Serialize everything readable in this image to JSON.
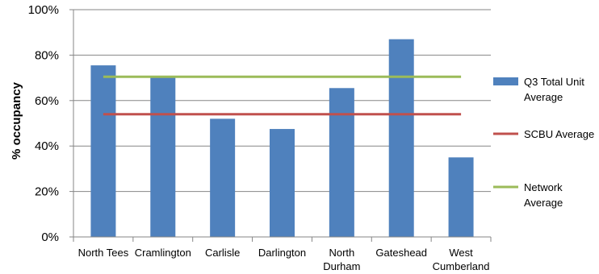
{
  "chart_data": {
    "type": "bar",
    "title": "",
    "xlabel": "",
    "ylabel": "% occupancy",
    "ylim": [
      0,
      100
    ],
    "yticks": [
      0,
      20,
      40,
      60,
      80,
      100
    ],
    "ytick_suffix": "%",
    "grid": true,
    "legend_position": "right",
    "categories": [
      [
        "North Tees"
      ],
      [
        "Cramlington"
      ],
      [
        "Carlisle"
      ],
      [
        "Darlington"
      ],
      [
        "North",
        "Durham"
      ],
      [
        "Gateshead"
      ],
      [
        "West",
        "Cumberland"
      ]
    ],
    "series": [
      {
        "name": "Q3 Total Unit Average",
        "type": "bar",
        "color": "#4F81BD",
        "legend_lines": [
          "Q3 Total Unit",
          "Average"
        ],
        "values": [
          75.5,
          70.5,
          52,
          47.5,
          65.5,
          87,
          35
        ]
      },
      {
        "name": "SCBU Average",
        "type": "line",
        "color": "#C0504D",
        "legend_lines": [
          "SCBU Average"
        ],
        "values": [
          54,
          54,
          54,
          54,
          54,
          54,
          54
        ]
      },
      {
        "name": "Network Average",
        "type": "line",
        "color": "#9BBB59",
        "legend_lines": [
          "Network",
          "Average"
        ],
        "values": [
          70.5,
          70.5,
          70.5,
          70.5,
          70.5,
          70.5,
          70.5
        ]
      }
    ]
  }
}
